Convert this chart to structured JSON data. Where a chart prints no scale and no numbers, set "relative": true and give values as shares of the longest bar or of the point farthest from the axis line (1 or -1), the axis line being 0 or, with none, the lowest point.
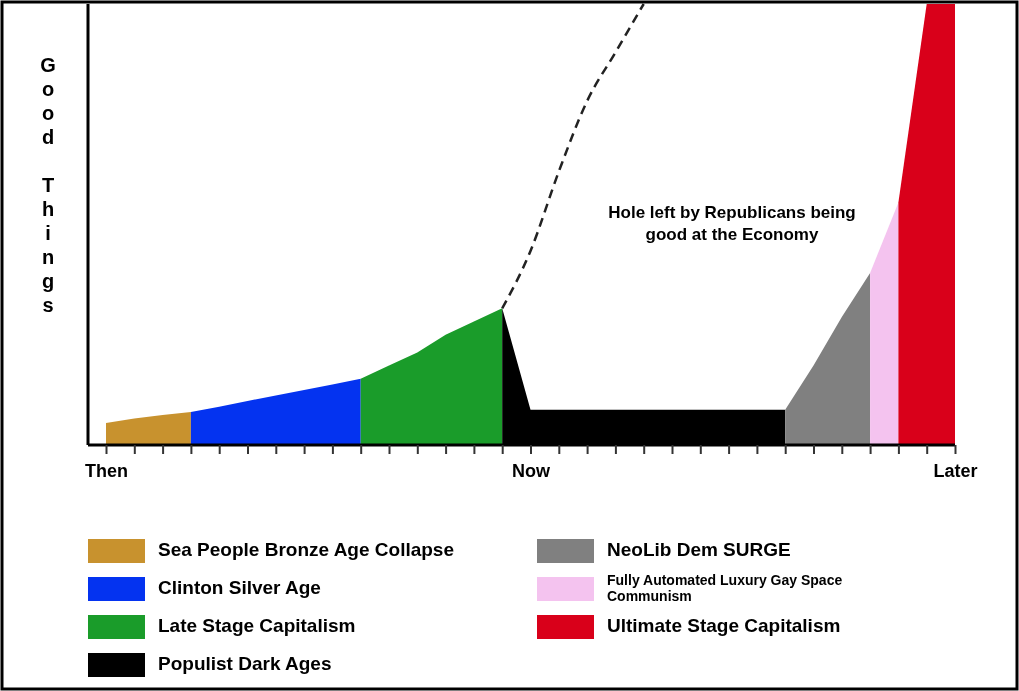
{
  "chart_data": {
    "type": "area",
    "relative": true,
    "ylabel": "Good Things",
    "legend": "bottom",
    "categories": [
      "Then",
      null,
      null,
      null,
      null,
      null,
      null,
      null,
      null,
      null,
      null,
      null,
      null,
      null,
      null,
      "Now",
      null,
      null,
      null,
      null,
      null,
      null,
      null,
      null,
      null,
      null,
      null,
      null,
      null,
      null,
      "Later"
    ],
    "annotations": [
      "Hole left by Republicans being good at the Economy"
    ],
    "series": [
      {
        "name": "Sea People Bronze Age Collapse",
        "color": "#c8922e",
        "values": [
          0.05,
          0.06,
          0.068,
          0.075,
          null,
          null,
          null,
          null,
          null,
          null,
          null,
          null,
          null,
          null,
          null,
          null,
          null,
          null,
          null,
          null,
          null,
          null,
          null,
          null,
          null,
          null,
          null,
          null,
          null,
          null,
          null
        ]
      },
      {
        "name": "Clinton Silver Age",
        "color": "#0433f0",
        "values": [
          null,
          null,
          null,
          0.075,
          0.087,
          0.1,
          0.112,
          0.125,
          0.137,
          0.15,
          null,
          null,
          null,
          null,
          null,
          null,
          null,
          null,
          null,
          null,
          null,
          null,
          null,
          null,
          null,
          null,
          null,
          null,
          null,
          null,
          null
        ]
      },
      {
        "name": "Late Stage Capitalism",
        "color": "#1a9c2a",
        "values": [
          null,
          null,
          null,
          null,
          null,
          null,
          null,
          null,
          null,
          0.15,
          0.18,
          0.21,
          0.25,
          0.28,
          0.31,
          null,
          null,
          null,
          null,
          null,
          null,
          null,
          null,
          null,
          null,
          null,
          null,
          null,
          null,
          null,
          null
        ]
      },
      {
        "name": "Populist Dark Ages",
        "color": "#000000",
        "values": [
          null,
          null,
          null,
          null,
          null,
          null,
          null,
          null,
          null,
          null,
          null,
          null,
          null,
          null,
          0.31,
          0.08,
          0.08,
          0.08,
          0.08,
          0.08,
          0.08,
          0.08,
          0.08,
          0.08,
          0.08,
          null,
          null,
          null,
          null,
          null,
          null
        ]
      },
      {
        "name": "NeoLib Dem SURGE",
        "color": "#808080",
        "values": [
          null,
          null,
          null,
          null,
          null,
          null,
          null,
          null,
          null,
          null,
          null,
          null,
          null,
          null,
          null,
          null,
          null,
          null,
          null,
          null,
          null,
          null,
          null,
          null,
          0.08,
          0.18,
          0.29,
          0.39,
          null,
          null,
          null
        ]
      },
      {
        "name": "Fully Automated Luxury Gay Space Communism",
        "color": "#f4c3ef",
        "values": [
          null,
          null,
          null,
          null,
          null,
          null,
          null,
          null,
          null,
          null,
          null,
          null,
          null,
          null,
          null,
          null,
          null,
          null,
          null,
          null,
          null,
          null,
          null,
          null,
          null,
          null,
          null,
          0.39,
          0.55,
          null,
          null
        ]
      },
      {
        "name": "Ultimate Stage Capitalism",
        "color": "#d9001a",
        "values": [
          null,
          null,
          null,
          null,
          null,
          null,
          null,
          null,
          null,
          null,
          null,
          null,
          null,
          null,
          null,
          null,
          null,
          null,
          null,
          null,
          null,
          null,
          null,
          null,
          null,
          null,
          null,
          null,
          0.55,
          1,
          1
        ]
      },
      {
        "type": "line",
        "color": "#222222",
        "line_style": "dashed",
        "values": [
          null,
          null,
          null,
          null,
          null,
          null,
          null,
          null,
          null,
          null,
          null,
          null,
          null,
          null,
          0.31,
          0.44,
          0.62,
          0.78,
          0.89,
          1,
          null,
          null,
          null,
          null,
          null,
          null,
          null,
          null,
          null,
          null,
          null
        ]
      }
    ]
  }
}
